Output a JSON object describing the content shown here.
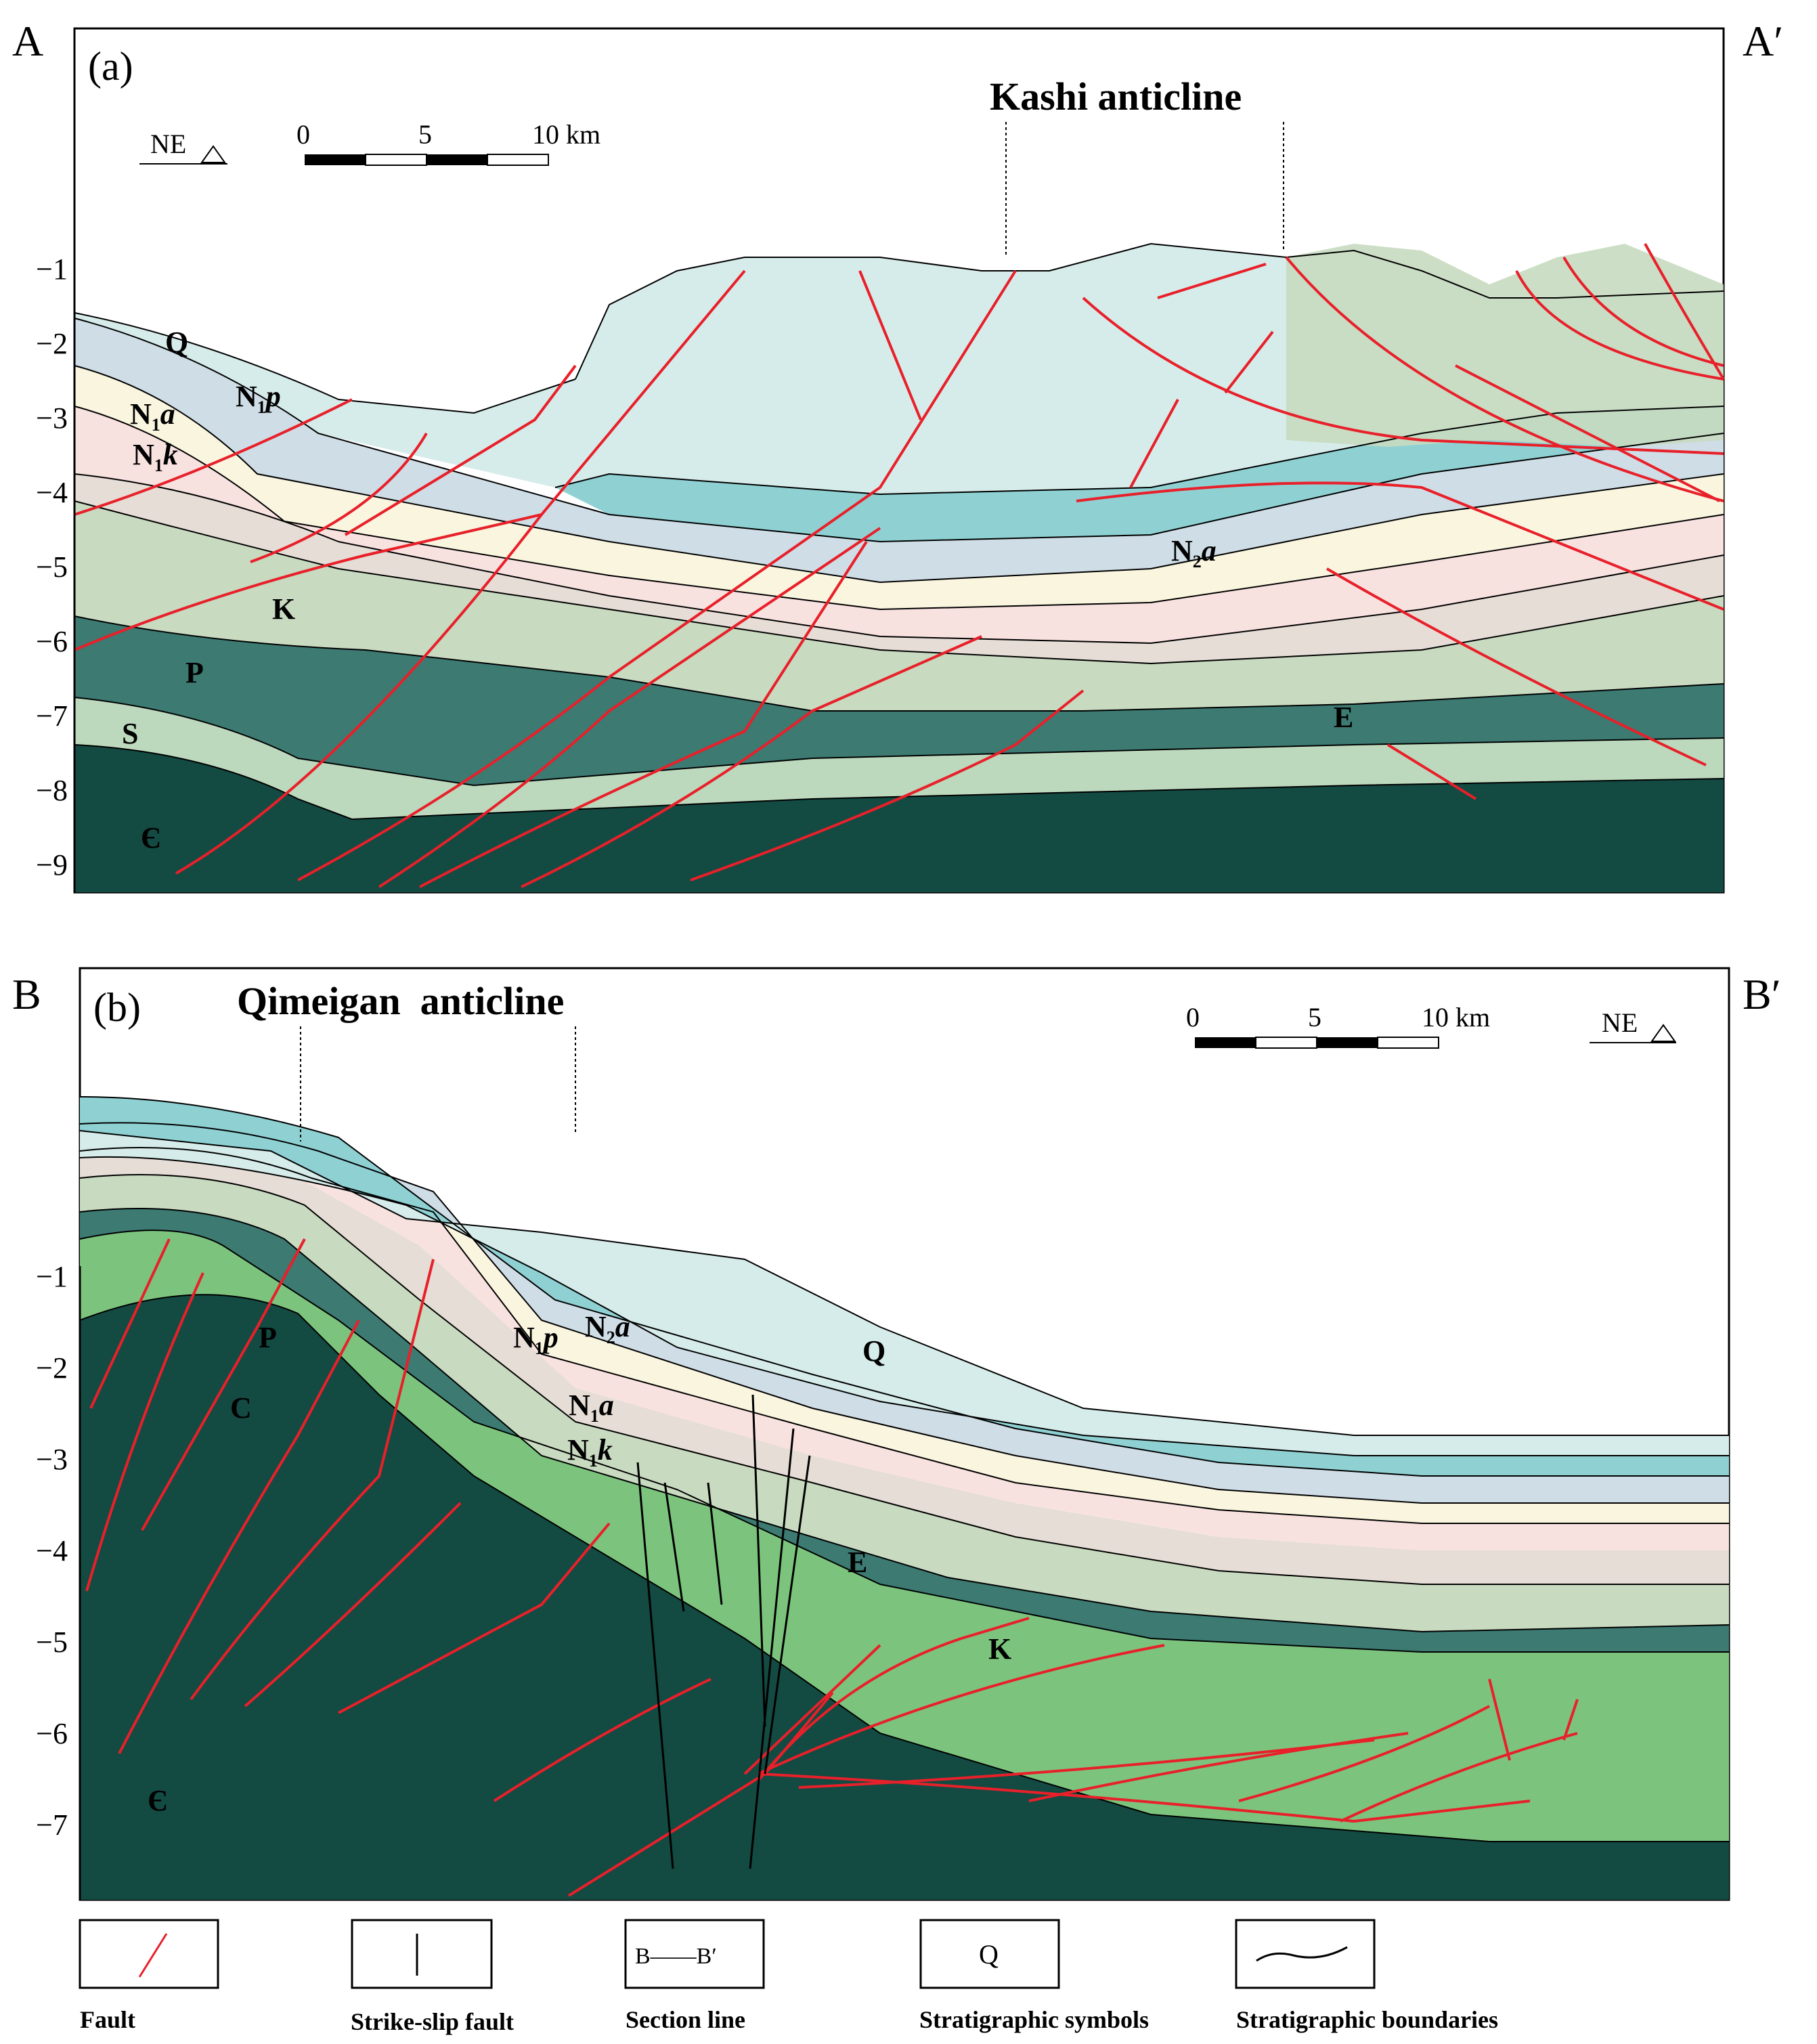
{
  "panel_a": {
    "corner_left": "A",
    "corner_right": "A′",
    "panel_tag": "(a)",
    "title": "Kashi anticline",
    "orientation": "NE",
    "scale": {
      "ticks": [
        "0",
        "5",
        "10 km"
      ]
    },
    "depth_ticks": [
      "−1",
      "−2",
      "−3",
      "−4",
      "−5",
      "−6",
      "−7",
      "−8",
      "−9"
    ],
    "units": {
      "Q": {
        "base": "Q"
      },
      "N1p": {
        "base": "N",
        "sub": "1",
        "ital": "p"
      },
      "N1a": {
        "base": "N",
        "sub": "1",
        "ital": "a"
      },
      "N1k": {
        "base": "N",
        "sub": "1",
        "ital": "k"
      },
      "N2a": {
        "base": "N",
        "sub": "2",
        "ital": "a"
      },
      "K": {
        "base": "K"
      },
      "P": {
        "base": "P"
      },
      "S": {
        "base": "S"
      },
      "C": {
        "base": "Є"
      },
      "E": {
        "base": "E"
      }
    }
  },
  "panel_b": {
    "corner_left": "B",
    "corner_right": "B′",
    "panel_tag": "(b)",
    "title": "Qimeigan  anticline",
    "orientation": "NE",
    "scale": {
      "ticks": [
        "0",
        "5",
        "10 km"
      ]
    },
    "depth_ticks": [
      "−1",
      "−2",
      "−3",
      "−4",
      "−5",
      "−6",
      "−7"
    ],
    "units": {
      "P": {
        "base": "P"
      },
      "C": {
        "base": "C"
      },
      "N1p": {
        "base": "N",
        "sub": "1",
        "ital": "p"
      },
      "N2a": {
        "base": "N",
        "sub": "2",
        "ital": "a"
      },
      "Q": {
        "base": "Q"
      },
      "N1a": {
        "base": "N",
        "sub": "1",
        "ital": "a"
      },
      "N1k": {
        "base": "N",
        "sub": "1",
        "ital": "k"
      },
      "E": {
        "base": "E"
      },
      "K": {
        "base": "K"
      },
      "Cm": {
        "base": "Є"
      }
    }
  },
  "legend": [
    {
      "key": "fault",
      "label": "Fault"
    },
    {
      "key": "strike_slip",
      "label": "Strike-slip fault"
    },
    {
      "key": "section_line",
      "label": "Section line",
      "sample": "B——B′"
    },
    {
      "key": "strat_symbols",
      "label": "Stratigraphic symbols",
      "sample": "Q"
    },
    {
      "key": "strat_bound",
      "label": "Stratigraphic boundaries"
    }
  ],
  "colors": {
    "Q": "#d6ecea",
    "N2a": "#8fd1d3",
    "N1p": "#cfdde6",
    "N1a": "#f9f5df",
    "N1k": "#f8e2e0",
    "E": "#e6ddd6",
    "K": "#c8dac0",
    "P": "#3c7a72",
    "S": "#bcd9bd",
    "C_dark": "#134a42",
    "green_b": "#7cc47e",
    "fault": "#e8202a"
  }
}
